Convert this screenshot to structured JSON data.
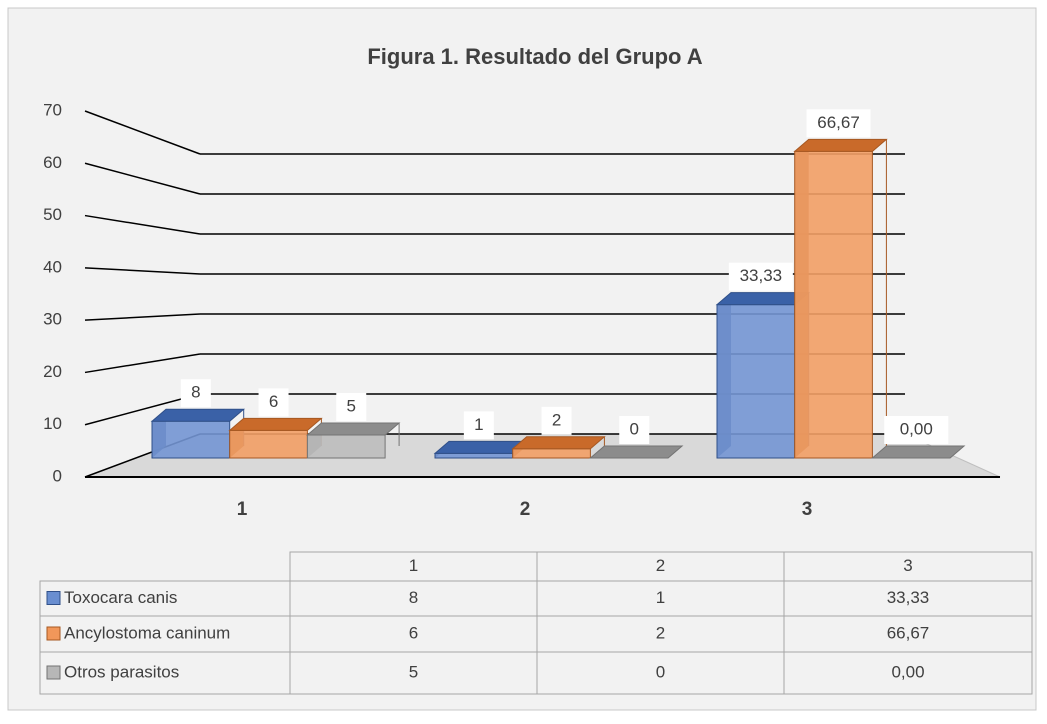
{
  "chart_data": {
    "type": "bar",
    "title": "Figura 1. Resultado  del Grupo A",
    "categories": [
      "1",
      "2",
      "3"
    ],
    "series": [
      {
        "name": "Toxocara canis",
        "color": "#4472c4",
        "values": [
          8,
          1,
          33.33
        ],
        "value_labels": [
          "8",
          "1",
          "33,33"
        ]
      },
      {
        "name": "Ancylostoma caninum",
        "color": "#ed7d31",
        "values": [
          6,
          2,
          66.67
        ],
        "value_labels": [
          "6",
          "2",
          "66,67"
        ]
      },
      {
        "name": "Otros parasitos",
        "color": "#a5a5a5",
        "values": [
          5,
          0,
          0
        ],
        "value_labels": [
          "5",
          "0",
          "0,00"
        ]
      }
    ],
    "ylim": [
      0,
      70
    ],
    "yticks": [
      0,
      10,
      20,
      30,
      40,
      50,
      60,
      70
    ],
    "grid": true,
    "data_table": true
  }
}
